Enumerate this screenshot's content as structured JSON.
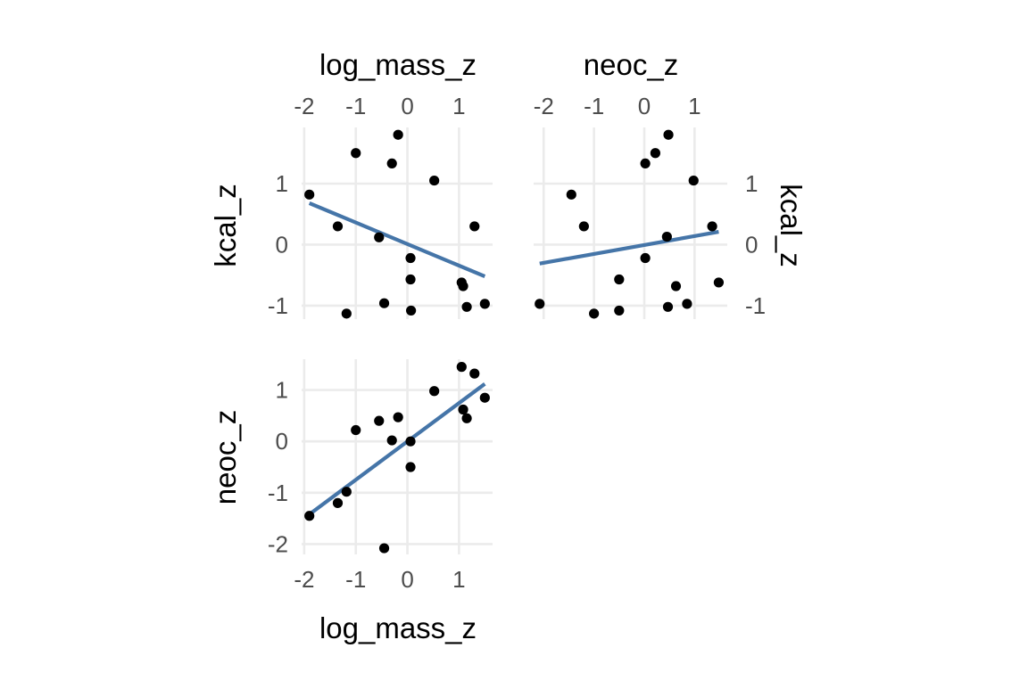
{
  "chart_data": {
    "type": "scatter",
    "grid": true,
    "legend": "none",
    "colors": {
      "fit_line": "#4575a8",
      "points": "#000000",
      "grid": "#ebebeb",
      "tick_text": "#4d4d4d",
      "title_text": "#000000"
    },
    "panels": [
      {
        "id": "kcal-vs-logmass",
        "xvar": "log_mass_z",
        "yvar": "kcal_z",
        "xlim": [
          -2.05,
          1.65
        ],
        "ylim": [
          -1.22,
          1.92
        ],
        "x_ticks": [
          -2,
          -1,
          0,
          1
        ],
        "y_ticks": [
          1,
          0,
          -1
        ],
        "x_tick_labels": [
          "-2",
          "-1",
          "0",
          "1"
        ],
        "y_tick_labels": [
          "1",
          "0",
          "-1"
        ],
        "points": [
          [
            -1.9,
            0.82
          ],
          [
            -1.35,
            0.3
          ],
          [
            -1.18,
            -1.13
          ],
          [
            -1.0,
            1.5
          ],
          [
            -0.55,
            0.12
          ],
          [
            -0.45,
            -0.96
          ],
          [
            -0.3,
            1.33
          ],
          [
            -0.18,
            1.8
          ],
          [
            0.06,
            -0.22
          ],
          [
            0.06,
            -0.57
          ],
          [
            0.07,
            -1.08
          ],
          [
            0.52,
            1.05
          ],
          [
            1.05,
            -0.62
          ],
          [
            1.08,
            -0.68
          ],
          [
            1.15,
            -1.02
          ],
          [
            1.3,
            0.3
          ],
          [
            1.5,
            -0.97
          ]
        ],
        "fit": [
          [
            -1.9,
            0.68
          ],
          [
            1.5,
            -0.52
          ]
        ]
      },
      {
        "id": "kcal-vs-neoc",
        "xvar": "neoc_z",
        "yvar": "kcal_z",
        "xlim": [
          -2.2,
          1.65
        ],
        "ylim": [
          -1.22,
          1.92
        ],
        "x_ticks": [
          -2,
          -1,
          0,
          1
        ],
        "y_ticks": [
          1,
          0,
          -1
        ],
        "x_tick_labels": [
          "-2",
          "-1",
          "0",
          "1"
        ],
        "y_tick_labels": [
          "1",
          "0",
          "-1"
        ],
        "points": [
          [
            -2.08,
            -0.97
          ],
          [
            -1.45,
            0.82
          ],
          [
            -1.2,
            0.3
          ],
          [
            -1.0,
            -1.13
          ],
          [
            -0.5,
            -0.57
          ],
          [
            -0.5,
            -1.08
          ],
          [
            0.02,
            -0.22
          ],
          [
            0.02,
            1.33
          ],
          [
            0.22,
            1.5
          ],
          [
            0.45,
            0.13
          ],
          [
            0.47,
            -1.02
          ],
          [
            0.48,
            1.8
          ],
          [
            0.63,
            -0.68
          ],
          [
            0.85,
            -0.97
          ],
          [
            0.98,
            1.05
          ],
          [
            1.35,
            0.3
          ],
          [
            1.48,
            -0.62
          ]
        ],
        "fit": [
          [
            -2.08,
            -0.31
          ],
          [
            1.48,
            0.21
          ]
        ]
      },
      {
        "id": "neoc-vs-logmass",
        "xvar": "log_mass_z",
        "yvar": "neoc_z",
        "xlim": [
          -2.05,
          1.65
        ],
        "ylim": [
          -2.2,
          1.6
        ],
        "x_ticks": [
          -2,
          -1,
          0,
          1
        ],
        "y_ticks": [
          1,
          0,
          -1,
          -2
        ],
        "x_tick_labels": [
          "-2",
          "-1",
          "0",
          "1"
        ],
        "y_tick_labels": [
          "1",
          "0",
          "-1",
          "-2"
        ],
        "points": [
          [
            -1.9,
            -1.45
          ],
          [
            -1.35,
            -1.2
          ],
          [
            -1.18,
            -0.98
          ],
          [
            -1.0,
            0.22
          ],
          [
            -0.55,
            0.4
          ],
          [
            -0.45,
            -2.08
          ],
          [
            -0.3,
            0.02
          ],
          [
            -0.18,
            0.47
          ],
          [
            0.06,
            0.0
          ],
          [
            0.06,
            -0.5
          ],
          [
            0.52,
            0.98
          ],
          [
            1.05,
            1.45
          ],
          [
            1.08,
            0.62
          ],
          [
            1.15,
            0.45
          ],
          [
            1.3,
            1.32
          ],
          [
            1.5,
            0.85
          ]
        ],
        "fit": [
          [
            -1.9,
            -1.42
          ],
          [
            1.5,
            1.12
          ]
        ]
      }
    ],
    "titles": {
      "top_left": "log_mass_z",
      "top_right": "neoc_z",
      "left_top": "kcal_z",
      "right_top": "kcal_z",
      "left_bottom": "neoc_z",
      "bottom": "log_mass_z"
    }
  }
}
